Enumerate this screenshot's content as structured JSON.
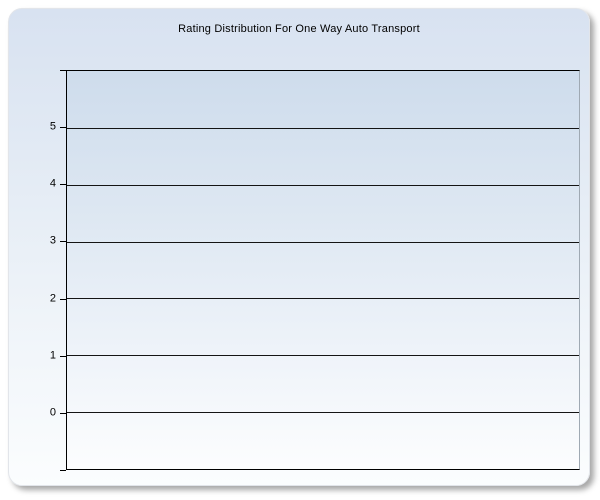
{
  "window": {
    "title": "Rating Distribution For One Way Auto Transport"
  },
  "chart_data": {
    "type": "bar",
    "title": "Rating Distribution For One Way Auto Transport",
    "categories": [],
    "values": [],
    "series": [],
    "xlabel": "",
    "ylabel": "",
    "ylim": [
      -1,
      6
    ],
    "yticks": [
      5,
      4,
      3,
      2,
      1,
      0
    ],
    "unlabeled_edge_ticks": [
      6,
      -1
    ],
    "grid": "horizontal",
    "legend": "none"
  },
  "colors": {
    "panel_gradient_top": "#d8e2f1",
    "panel_gradient_bottom": "#fbfdfe",
    "plot_gradient_top": "#cedcec",
    "plot_gradient_bottom": "#fcfdfe",
    "axis_line": "#000000",
    "gridline": "#141414",
    "plot_right_border": "#9fa9b3",
    "title_text": "#000000",
    "page_background": "#ffffff"
  }
}
